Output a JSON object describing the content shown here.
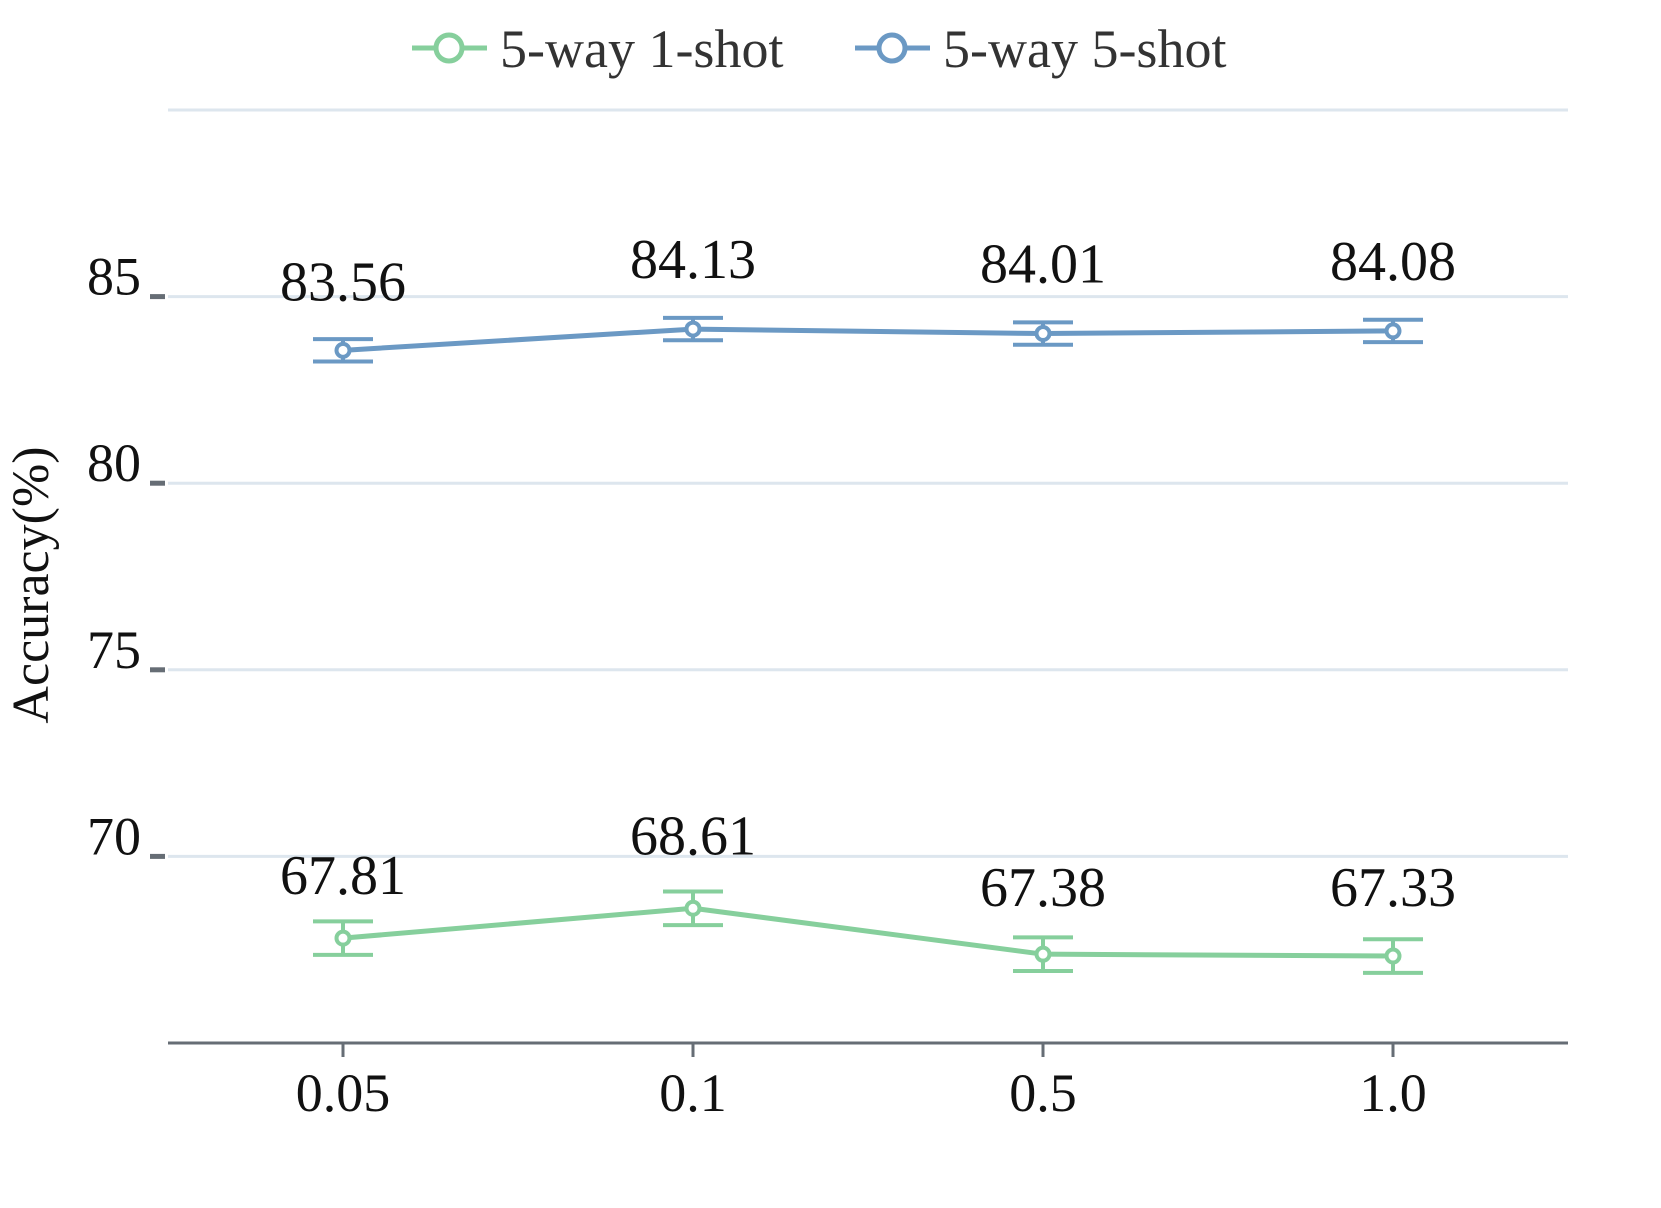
{
  "chart_data": {
    "type": "line",
    "title": "",
    "xlabel": "",
    "ylabel": "Accuracy(%)",
    "categories": [
      "0.05",
      "0.1",
      "0.5",
      "1.0"
    ],
    "yticks": [
      "70",
      "75",
      "80",
      "85"
    ],
    "ylim": [
      65,
      90
    ],
    "grid": true,
    "legend_position": "top-center",
    "error_bars": true,
    "series": [
      {
        "name": "5-way 1-shot",
        "color": "#86cf9c",
        "values": [
          67.81,
          68.61,
          67.38,
          67.33
        ],
        "labels": [
          "67.81",
          "68.61",
          "67.38",
          "67.33"
        ],
        "error": [
          0.45,
          0.45,
          0.45,
          0.45
        ]
      },
      {
        "name": "5-way 5-shot",
        "color": "#6b99c4",
        "values": [
          83.56,
          84.13,
          84.01,
          84.08
        ],
        "labels": [
          "83.56",
          "84.13",
          "84.01",
          "84.08"
        ],
        "error": [
          0.3,
          0.3,
          0.3,
          0.3
        ]
      }
    ],
    "colors": {
      "grid": "#dde6ee",
      "axis": "#666d75"
    }
  }
}
